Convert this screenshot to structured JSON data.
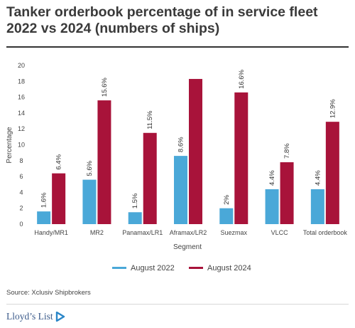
{
  "chart_data": {
    "type": "bar",
    "title": "Tanker orderbook percentage of in service fleet 2022 vs 2024 (numbers of ships)",
    "xlabel": "Segment",
    "ylabel": "Percentage",
    "ylim": [
      0,
      20
    ],
    "yticks": [
      0,
      2,
      4,
      6,
      8,
      10,
      12,
      14,
      16,
      18,
      20
    ],
    "grid": false,
    "legend_position": "bottom",
    "categories": [
      "Handy/MR1",
      "MR2",
      "Panamax/LR1",
      "Aframax/LR2",
      "Suezmax",
      "VLCC",
      "Total orderbook"
    ],
    "series": [
      {
        "name": "August 2022",
        "color": "#4aa8d8",
        "values": [
          1.6,
          5.6,
          1.5,
          8.6,
          2,
          4.4,
          4.4
        ],
        "labels": [
          "1.6%",
          "5.6%",
          "1.5%",
          "8.6%",
          "2%",
          "4.4%",
          "4.4%"
        ]
      },
      {
        "name": "August 2024",
        "color": "#a8133a",
        "values": [
          6.4,
          15.6,
          11.5,
          18.3,
          16.6,
          7.8,
          12.9
        ],
        "labels": [
          "6.4%",
          "15.6%",
          "11.5%",
          "",
          "16.6%",
          "7.8%",
          "12.9%"
        ]
      }
    ]
  },
  "source": "Source: Xclusiv Shipbrokers",
  "brand": {
    "name": "Lloyd’s List",
    "color": "#3b5a8a",
    "icon": "play-triangle-icon"
  }
}
